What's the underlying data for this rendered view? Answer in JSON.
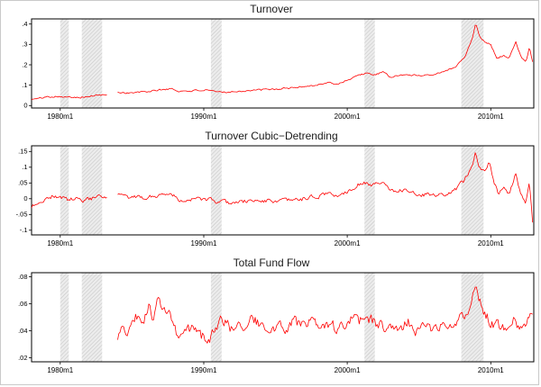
{
  "recession_bands": [
    [
      1980.0,
      1980.6
    ],
    [
      1981.5,
      1982.92
    ],
    [
      1990.5,
      1991.25
    ],
    [
      2001.2,
      2001.92
    ],
    [
      2007.95,
      2009.5
    ]
  ],
  "band_style": {
    "fill": "#ececec",
    "hatch": "#c4c4c4"
  },
  "chart_data": [
    {
      "type": "line",
      "title": "Turnover",
      "line_color": "#FF0000",
      "x_range": [
        1978.0,
        2013.0
      ],
      "xticks": [
        {
          "x": 1980,
          "label": "1980m1"
        },
        {
          "x": 1990,
          "label": "1990m1"
        },
        {
          "x": 2000,
          "label": "2000m1"
        },
        {
          "x": 2010,
          "label": "2010m1"
        }
      ],
      "ylim": [
        -0.012,
        0.425
      ],
      "yticks": [
        {
          "y": 0,
          "label": "0"
        },
        {
          "y": 0.1,
          "label": ".1"
        },
        {
          "y": 0.2,
          "label": ".2"
        },
        {
          "y": 0.3,
          "label": ".3"
        },
        {
          "y": 0.4,
          "label": ".4"
        }
      ],
      "data_start": 1978.0,
      "data_end": 2012.95,
      "gaps": [
        [
          1983.3,
          1983.95
        ]
      ],
      "noise_amp": 0.005,
      "noise_seed": 101,
      "anchors": [
        [
          1978.0,
          0.03
        ],
        [
          1978.5,
          0.035
        ],
        [
          1979.0,
          0.042
        ],
        [
          1979.5,
          0.045
        ],
        [
          1980.0,
          0.046
        ],
        [
          1980.5,
          0.04
        ],
        [
          1981.0,
          0.043
        ],
        [
          1981.5,
          0.041
        ],
        [
          1982.0,
          0.044
        ],
        [
          1982.5,
          0.05
        ],
        [
          1983.0,
          0.052
        ],
        [
          1983.25,
          0.05
        ],
        [
          1984.0,
          0.066
        ],
        [
          1984.5,
          0.063
        ],
        [
          1985.0,
          0.062
        ],
        [
          1985.5,
          0.065
        ],
        [
          1986.0,
          0.068
        ],
        [
          1986.5,
          0.072
        ],
        [
          1987.0,
          0.078
        ],
        [
          1987.8,
          0.082
        ],
        [
          1988.2,
          0.07
        ],
        [
          1989.0,
          0.072
        ],
        [
          1990.0,
          0.075
        ],
        [
          1990.6,
          0.07
        ],
        [
          1991.0,
          0.066
        ],
        [
          1992.0,
          0.068
        ],
        [
          1993.0,
          0.073
        ],
        [
          1994.0,
          0.077
        ],
        [
          1995.0,
          0.08
        ],
        [
          1996.0,
          0.086
        ],
        [
          1997.0,
          0.094
        ],
        [
          1998.0,
          0.102
        ],
        [
          1998.7,
          0.112
        ],
        [
          1999.3,
          0.105
        ],
        [
          2000.0,
          0.125
        ],
        [
          2000.7,
          0.148
        ],
        [
          2001.3,
          0.158
        ],
        [
          2001.8,
          0.15
        ],
        [
          2002.5,
          0.162
        ],
        [
          2003.0,
          0.14
        ],
        [
          2003.7,
          0.148
        ],
        [
          2004.3,
          0.152
        ],
        [
          2005.0,
          0.147
        ],
        [
          2005.7,
          0.152
        ],
        [
          2006.3,
          0.158
        ],
        [
          2007.0,
          0.172
        ],
        [
          2007.6,
          0.195
        ],
        [
          2008.2,
          0.24
        ],
        [
          2008.7,
          0.33
        ],
        [
          2008.95,
          0.4
        ],
        [
          2009.2,
          0.345
        ],
        [
          2009.6,
          0.31
        ],
        [
          2010.0,
          0.3
        ],
        [
          2010.4,
          0.235
        ],
        [
          2010.9,
          0.245
        ],
        [
          2011.3,
          0.235
        ],
        [
          2011.75,
          0.31
        ],
        [
          2012.1,
          0.24
        ],
        [
          2012.45,
          0.215
        ],
        [
          2012.7,
          0.29
        ],
        [
          2012.95,
          0.205
        ]
      ]
    },
    {
      "type": "line",
      "title": "Turnover Cubic−Detrending",
      "line_color": "#FF0000",
      "x_range": [
        1978.0,
        2013.0
      ],
      "xticks": [
        {
          "x": 1980,
          "label": "1980m1"
        },
        {
          "x": 1990,
          "label": "1990m1"
        },
        {
          "x": 2000,
          "label": "2000m1"
        },
        {
          "x": 2010,
          "label": "2010m1"
        }
      ],
      "ylim": [
        -0.115,
        0.168
      ],
      "yticks": [
        {
          "y": -0.1,
          "label": "-.1"
        },
        {
          "y": -0.05,
          "label": "-.05"
        },
        {
          "y": 0,
          "label": "0"
        },
        {
          "y": 0.05,
          "label": ".05"
        },
        {
          "y": 0.1,
          "label": ".1"
        },
        {
          "y": 0.15,
          "label": ".15"
        }
      ],
      "data_start": 1978.0,
      "data_end": 2012.95,
      "gaps": [
        [
          1983.3,
          1983.95
        ]
      ],
      "noise_amp": 0.008,
      "noise_seed": 202,
      "anchors": [
        [
          1978.0,
          -0.025
        ],
        [
          1978.5,
          -0.012
        ],
        [
          1979.0,
          0.0
        ],
        [
          1979.5,
          0.008
        ],
        [
          1980.0,
          0.006
        ],
        [
          1980.5,
          -0.004
        ],
        [
          1981.0,
          0.0
        ],
        [
          1981.5,
          -0.006
        ],
        [
          1982.0,
          -0.002
        ],
        [
          1982.5,
          0.004
        ],
        [
          1983.0,
          0.004
        ],
        [
          1983.25,
          0.0
        ],
        [
          1984.0,
          0.012
        ],
        [
          1984.5,
          0.006
        ],
        [
          1985.0,
          0.002
        ],
        [
          1985.5,
          0.004
        ],
        [
          1986.0,
          0.004
        ],
        [
          1986.5,
          0.008
        ],
        [
          1987.0,
          0.014
        ],
        [
          1987.8,
          0.016
        ],
        [
          1988.2,
          -0.002
        ],
        [
          1989.0,
          -0.004
        ],
        [
          1990.0,
          0.0
        ],
        [
          1990.6,
          -0.006
        ],
        [
          1991.0,
          -0.012
        ],
        [
          1992.0,
          -0.012
        ],
        [
          1993.0,
          -0.008
        ],
        [
          1994.0,
          -0.006
        ],
        [
          1995.0,
          -0.008
        ],
        [
          1996.0,
          -0.006
        ],
        [
          1997.0,
          0.0
        ],
        [
          1998.0,
          0.008
        ],
        [
          1998.7,
          0.018
        ],
        [
          1999.3,
          0.008
        ],
        [
          2000.0,
          0.024
        ],
        [
          2000.7,
          0.044
        ],
        [
          2001.3,
          0.052
        ],
        [
          2001.8,
          0.042
        ],
        [
          2002.5,
          0.052
        ],
        [
          2003.0,
          0.026
        ],
        [
          2003.7,
          0.028
        ],
        [
          2004.3,
          0.026
        ],
        [
          2005.0,
          0.014
        ],
        [
          2005.7,
          0.012
        ],
        [
          2006.3,
          0.01
        ],
        [
          2007.0,
          0.016
        ],
        [
          2007.6,
          0.03
        ],
        [
          2008.2,
          0.06
        ],
        [
          2008.7,
          0.11
        ],
        [
          2008.95,
          0.15
        ],
        [
          2009.2,
          0.1
        ],
        [
          2009.6,
          0.08
        ],
        [
          2009.9,
          0.12
        ],
        [
          2010.2,
          0.06
        ],
        [
          2010.5,
          0.02
        ],
        [
          2010.9,
          0.03
        ],
        [
          2011.3,
          0.015
        ],
        [
          2011.75,
          0.08
        ],
        [
          2012.1,
          0.01
        ],
        [
          2012.45,
          -0.01
        ],
        [
          2012.7,
          0.055
        ],
        [
          2012.95,
          -0.095
        ]
      ]
    },
    {
      "type": "line",
      "title": "Total Fund Flow",
      "line_color": "#FF0000",
      "x_range": [
        1978.0,
        2013.0
      ],
      "xticks": [
        {
          "x": 1980,
          "label": "1980m1"
        },
        {
          "x": 1990,
          "label": "1990m1"
        },
        {
          "x": 2000,
          "label": "2000m1"
        },
        {
          "x": 2010,
          "label": "2010m1"
        }
      ],
      "ylim": [
        0.017,
        0.083
      ],
      "yticks": [
        {
          "y": 0.02,
          "label": ".02"
        },
        {
          "y": 0.04,
          "label": ".04"
        },
        {
          "y": 0.06,
          "label": ".06"
        },
        {
          "y": 0.08,
          "label": ".08"
        }
      ],
      "data_start": 1984.0,
      "data_end": 2012.95,
      "gaps": [],
      "noise_amp": 0.005,
      "noise_seed": 303,
      "anchors": [
        [
          1984.0,
          0.03
        ],
        [
          1984.3,
          0.045
        ],
        [
          1984.6,
          0.038
        ],
        [
          1985.0,
          0.046
        ],
        [
          1985.4,
          0.052
        ],
        [
          1985.8,
          0.044
        ],
        [
          1986.2,
          0.06
        ],
        [
          1986.5,
          0.05
        ],
        [
          1986.9,
          0.064
        ],
        [
          1987.2,
          0.052
        ],
        [
          1987.5,
          0.058
        ],
        [
          1987.9,
          0.04
        ],
        [
          1988.3,
          0.035
        ],
        [
          1988.8,
          0.038
        ],
        [
          1989.3,
          0.042
        ],
        [
          1989.8,
          0.036
        ],
        [
          1990.3,
          0.034
        ],
        [
          1990.8,
          0.04
        ],
        [
          1991.3,
          0.048
        ],
        [
          1991.8,
          0.042
        ],
        [
          1992.3,
          0.046
        ],
        [
          1992.8,
          0.042
        ],
        [
          1993.3,
          0.05
        ],
        [
          1993.8,
          0.046
        ],
        [
          1994.3,
          0.038
        ],
        [
          1994.8,
          0.04
        ],
        [
          1995.3,
          0.044
        ],
        [
          1995.8,
          0.042
        ],
        [
          1996.3,
          0.048
        ],
        [
          1996.8,
          0.044
        ],
        [
          1997.3,
          0.047
        ],
        [
          1997.8,
          0.043
        ],
        [
          1998.3,
          0.04
        ],
        [
          1998.8,
          0.044
        ],
        [
          1999.3,
          0.041
        ],
        [
          1999.8,
          0.043
        ],
        [
          2000.3,
          0.049
        ],
        [
          2000.8,
          0.046
        ],
        [
          2001.3,
          0.052
        ],
        [
          2001.8,
          0.047
        ],
        [
          2002.3,
          0.044
        ],
        [
          2002.8,
          0.042
        ],
        [
          2003.3,
          0.045
        ],
        [
          2003.8,
          0.043
        ],
        [
          2004.3,
          0.046
        ],
        [
          2004.8,
          0.041
        ],
        [
          2005.3,
          0.043
        ],
        [
          2005.8,
          0.04
        ],
        [
          2006.3,
          0.044
        ],
        [
          2006.8,
          0.042
        ],
        [
          2007.3,
          0.046
        ],
        [
          2007.8,
          0.048
        ],
        [
          2008.2,
          0.052
        ],
        [
          2008.6,
          0.06
        ],
        [
          2008.95,
          0.078
        ],
        [
          2009.2,
          0.062
        ],
        [
          2009.5,
          0.055
        ],
        [
          2009.9,
          0.048
        ],
        [
          2010.3,
          0.044
        ],
        [
          2010.8,
          0.042
        ],
        [
          2011.2,
          0.046
        ],
        [
          2011.6,
          0.052
        ],
        [
          2012.0,
          0.043
        ],
        [
          2012.4,
          0.047
        ],
        [
          2012.7,
          0.052
        ],
        [
          2012.95,
          0.046
        ]
      ]
    }
  ]
}
